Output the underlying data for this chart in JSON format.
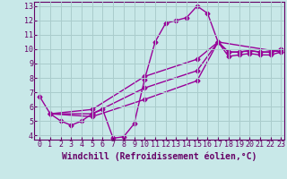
{
  "xlabel": "Windchill (Refroidissement éolien,°C)",
  "bg_color": "#c8e8e8",
  "line_color": "#990099",
  "grid_color": "#aacccc",
  "axis_color": "#660066",
  "xlim": [
    -0.5,
    23.3
  ],
  "ylim": [
    3.7,
    13.3
  ],
  "xticks": [
    0,
    1,
    2,
    3,
    4,
    5,
    6,
    7,
    8,
    9,
    10,
    11,
    12,
    13,
    14,
    15,
    16,
    17,
    18,
    19,
    20,
    21,
    22,
    23
  ],
  "yticks": [
    4,
    5,
    6,
    7,
    8,
    9,
    10,
    11,
    12,
    13
  ],
  "lines": [
    {
      "x": [
        0,
        1,
        2,
        3,
        4,
        5,
        6,
        7,
        8,
        9,
        10,
        11,
        12,
        13,
        14,
        15,
        16,
        17,
        18,
        19,
        20,
        21,
        22,
        23
      ],
      "y": [
        6.7,
        5.5,
        5.0,
        4.7,
        5.0,
        5.5,
        5.8,
        3.8,
        3.9,
        4.8,
        7.9,
        10.5,
        11.8,
        12.0,
        12.2,
        13.0,
        12.5,
        10.5,
        9.8,
        9.8,
        9.9,
        9.8,
        9.8,
        10.0
      ]
    },
    {
      "x": [
        1,
        5,
        10,
        15,
        17,
        18,
        19,
        20,
        21,
        22,
        23
      ],
      "y": [
        5.5,
        5.8,
        8.1,
        9.3,
        10.5,
        9.8,
        9.8,
        9.9,
        9.8,
        9.8,
        10.0
      ]
    },
    {
      "x": [
        1,
        5,
        10,
        15,
        17,
        18,
        19,
        20,
        21,
        22,
        23
      ],
      "y": [
        5.5,
        5.5,
        7.3,
        8.5,
        10.5,
        9.5,
        9.6,
        9.7,
        9.6,
        9.6,
        9.8
      ]
    },
    {
      "x": [
        1,
        5,
        10,
        15,
        17,
        23
      ],
      "y": [
        5.5,
        5.3,
        6.5,
        7.8,
        10.5,
        9.8
      ]
    }
  ],
  "marker": "D",
  "markersize": 2.5,
  "linewidth": 1.0,
  "tick_fontsize": 6,
  "xlabel_fontsize": 7
}
